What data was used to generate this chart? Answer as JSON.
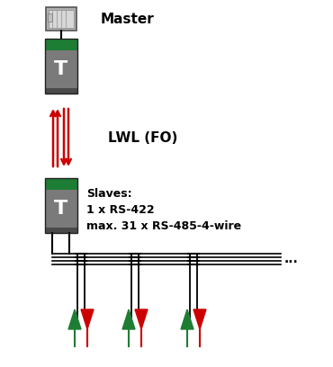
{
  "bg_color": "#ffffff",
  "master_label": "Master",
  "lwl_label": "LWL (FO)",
  "slaves_label": "Slaves:\n1 x RS-422\nmax. 31 x RS-485-4-wire",
  "dots_label": "...",
  "green_color": "#1e7d34",
  "gray_body": "#7a7a7a",
  "dark_strip": "#4a4a4a",
  "red_color": "#cc0000",
  "green_arrow": "#1e7d34",
  "black": "#000000",
  "plc_outer": "#999999",
  "plc_inner": "#cccccc"
}
